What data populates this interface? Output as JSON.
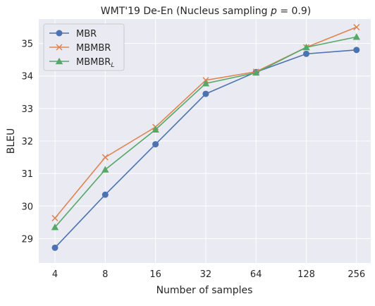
{
  "chart_data": {
    "type": "line",
    "title": "WMT'19 De-En (Nucleus sampling p = 0.9)",
    "title_parts": {
      "prefix": "WMT'19 De-En (Nucleus sampling ",
      "var": "p",
      "suffix": " = 0.9)"
    },
    "xlabel": "Number of samples",
    "ylabel": "BLEU",
    "categories": [
      "4",
      "8",
      "16",
      "32",
      "64",
      "128",
      "256"
    ],
    "y_ticks": [
      29,
      30,
      31,
      32,
      33,
      34,
      35
    ],
    "ylim": [
      28.25,
      35.75
    ],
    "grid": true,
    "legend_position": "top-left",
    "series": [
      {
        "name": "MBR",
        "marker": "circle",
        "color": "#4c72b0",
        "values": [
          28.72,
          30.35,
          31.9,
          33.45,
          34.12,
          34.68,
          34.8
        ]
      },
      {
        "name": "MBMBR",
        "marker": "x",
        "color": "#dd8452",
        "values": [
          29.63,
          31.5,
          32.43,
          33.87,
          34.13,
          34.88,
          35.5
        ]
      },
      {
        "name": "MBMBR",
        "name_sub": "L",
        "marker": "triangle",
        "color": "#55a868",
        "values": [
          29.35,
          31.12,
          32.35,
          33.77,
          34.1,
          34.88,
          35.2
        ]
      }
    ]
  }
}
